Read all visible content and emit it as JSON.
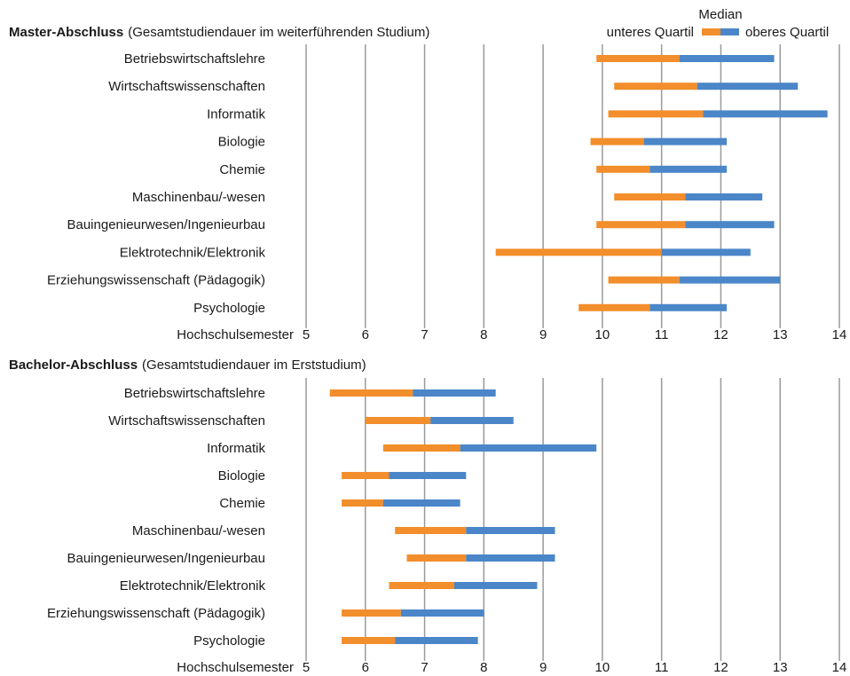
{
  "legend": {
    "median": "Median",
    "lower": "unteres Quartil",
    "upper": "oberes Quartil"
  },
  "colors": {
    "lower": "#F28E2B",
    "upper": "#4A86C8",
    "grid": "#9a9a9a"
  },
  "chart_data": [
    {
      "type": "bar",
      "title_bold": "Master-Abschluss",
      "title_rest": "(Gesamtstudiendauer im weiterführenden Studium)",
      "xlabel": "Hochschulsemester",
      "xlim": [
        5,
        14
      ],
      "ticks": [
        "5",
        "6",
        "7",
        "8",
        "9",
        "10",
        "11",
        "12",
        "13",
        "14"
      ],
      "categories": [
        "Betriebswirtschaftslehre",
        "Wirtschaftswissenschaften",
        "Informatik",
        "Biologie",
        "Chemie",
        "Maschinenbau/-wesen",
        "Bauingenieurwesen/Ingenieurbau",
        "Elektrotechnik/Elektronik",
        "Erziehungswissenschaft (Pädagogik)",
        "Psychologie"
      ],
      "series": [
        {
          "name": "unteres Quartil",
          "values": [
            9.9,
            10.2,
            10.1,
            9.8,
            9.9,
            10.2,
            9.9,
            8.2,
            10.1,
            9.6
          ]
        },
        {
          "name": "Median",
          "values": [
            11.3,
            11.6,
            11.7,
            10.7,
            10.8,
            11.4,
            11.4,
            11.0,
            11.3,
            10.8
          ]
        },
        {
          "name": "oberes Quartil",
          "values": [
            12.9,
            13.3,
            13.8,
            12.1,
            12.1,
            12.7,
            12.9,
            12.5,
            13.0,
            12.1
          ]
        }
      ]
    },
    {
      "type": "bar",
      "title_bold": "Bachelor-Abschluss",
      "title_rest": "(Gesamtstudiendauer im Erststudium)",
      "xlabel": "Hochschulsemester",
      "xlim": [
        5,
        14
      ],
      "ticks": [
        "5",
        "6",
        "7",
        "8",
        "9",
        "10",
        "11",
        "12",
        "13",
        "14"
      ],
      "categories": [
        "Betriebswirtschaftslehre",
        "Wirtschaftswissenschaften",
        "Informatik",
        "Biologie",
        "Chemie",
        "Maschinenbau/-wesen",
        "Bauingenieurwesen/Ingenieurbau",
        "Elektrotechnik/Elektronik",
        "Erziehungswissenschaft (Pädagogik)",
        "Psychologie"
      ],
      "series": [
        {
          "name": "unteres Quartil",
          "values": [
            5.4,
            6.0,
            6.3,
            5.6,
            5.6,
            6.5,
            6.7,
            6.4,
            5.6,
            5.6
          ]
        },
        {
          "name": "Median",
          "values": [
            6.8,
            7.1,
            7.6,
            6.4,
            6.3,
            7.7,
            7.7,
            7.5,
            6.6,
            6.5
          ]
        },
        {
          "name": "oberes Quartil",
          "values": [
            8.2,
            8.5,
            9.9,
            7.7,
            7.6,
            9.2,
            9.2,
            8.9,
            8.0,
            7.9
          ]
        }
      ]
    }
  ]
}
